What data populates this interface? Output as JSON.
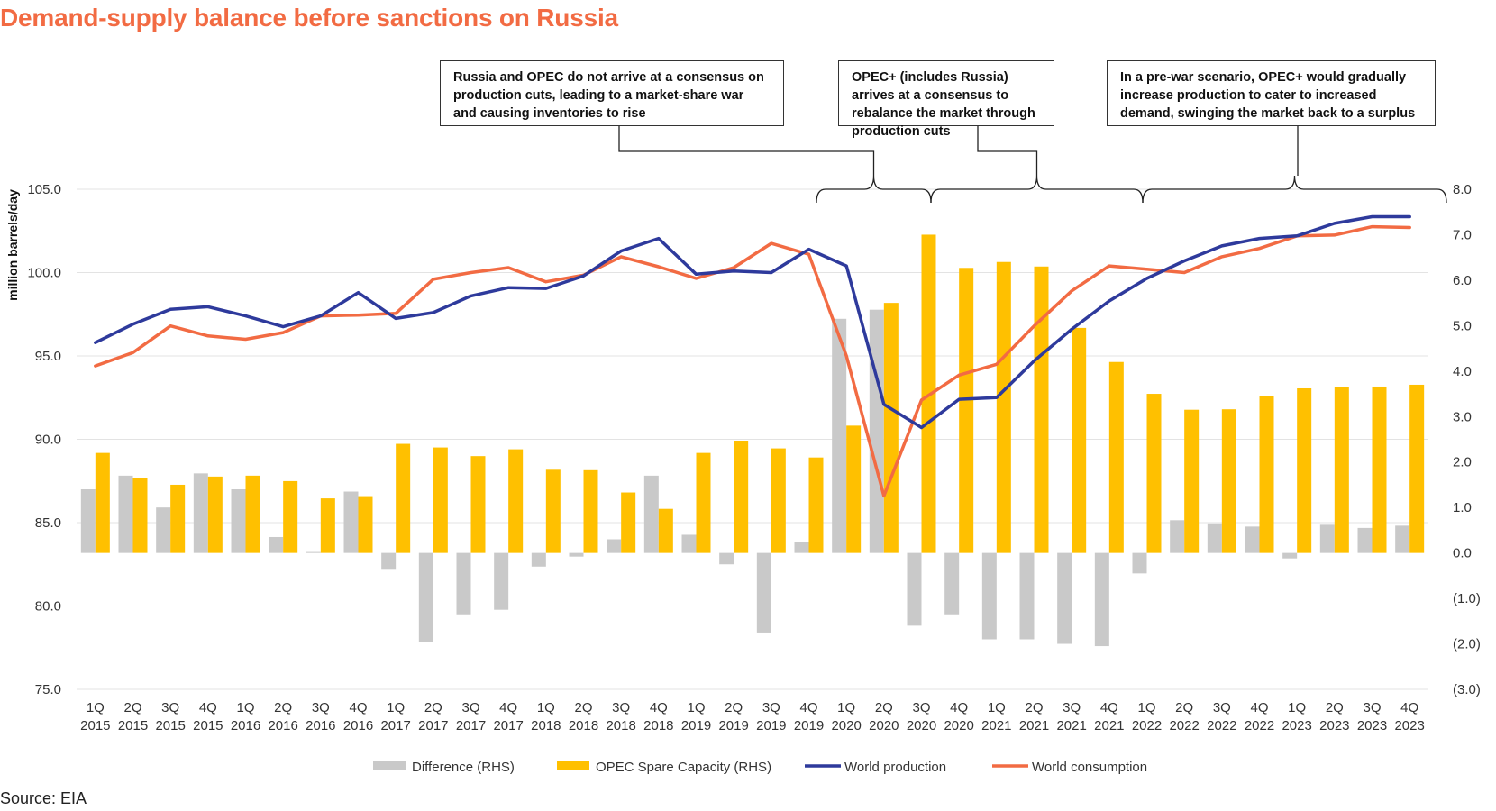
{
  "title": "Demand-supply balance before sanctions on Russia",
  "source": "Source: EIA",
  "annotations": [
    "Russia and OPEC do not arrive at a consensus on production cuts, leading to a market-share war and causing inventories to rise",
    "OPEC+ (includes Russia) arrives at a consensus to rebalance the market through production cuts",
    "In a pre-war scenario, OPEC+ would gradually increase production to cater to increased demand, swinging the market back to a surplus"
  ],
  "colors": {
    "difference": "#C9C9C9",
    "spare_capacity": "#FFC000",
    "production": "#2E3A9C",
    "consumption": "#F26B43",
    "title": "#F26B43",
    "grid": "#E3E3E3"
  },
  "chart_data": {
    "type": "bar",
    "title": "Demand-supply balance before sanctions on Russia",
    "ylabel": "million barrels/day",
    "ylim": [
      75,
      105
    ],
    "yticks": [
      "75.0",
      "80.0",
      "85.0",
      "90.0",
      "95.0",
      "100.0",
      "105.0"
    ],
    "y2lim": [
      -3,
      8
    ],
    "y2ticks": [
      "(3.0)",
      "(2.0)",
      "(1.0)",
      "0.0",
      "1.0",
      "2.0",
      "3.0",
      "4.0",
      "5.0",
      "6.0",
      "7.0",
      "8.0"
    ],
    "grid": true,
    "legend_position": "bottom",
    "categories": [
      "1Q 2015",
      "2Q 2015",
      "3Q 2015",
      "4Q 2015",
      "1Q 2016",
      "2Q 2016",
      "3Q 2016",
      "4Q 2016",
      "1Q 2017",
      "2Q 2017",
      "3Q 2017",
      "4Q 2017",
      "1Q 2018",
      "2Q 2018",
      "3Q 2018",
      "4Q 2018",
      "1Q 2019",
      "2Q 2019",
      "3Q 2019",
      "4Q 2019",
      "1Q 2020",
      "2Q 2020",
      "3Q 2020",
      "4Q 2020",
      "1Q 2021",
      "2Q 2021",
      "3Q 2021",
      "4Q 2021",
      "1Q 2022",
      "2Q 2022",
      "3Q 2022",
      "4Q 2022",
      "1Q 2023",
      "2Q 2023",
      "3Q 2023",
      "4Q 2023"
    ],
    "series": [
      {
        "name": "Difference (RHS)",
        "type": "bar",
        "axis": "right",
        "values": [
          1.4,
          1.7,
          1.0,
          1.75,
          1.4,
          0.35,
          0.02,
          1.35,
          -0.35,
          -1.95,
          -1.35,
          -1.25,
          -0.3,
          -0.08,
          0.3,
          1.7,
          0.4,
          -0.25,
          -1.75,
          0.25,
          5.15,
          5.35,
          -1.6,
          -1.35,
          -1.9,
          -1.9,
          -2.0,
          -2.05,
          -0.45,
          0.72,
          0.65,
          0.58,
          -0.12,
          0.62,
          0.55,
          0.6
        ]
      },
      {
        "name": "OPEC Spare Capacity (RHS)",
        "type": "bar",
        "axis": "right",
        "values": [
          2.2,
          1.65,
          1.5,
          1.68,
          1.7,
          1.58,
          1.2,
          1.25,
          2.4,
          2.32,
          2.13,
          2.28,
          1.83,
          1.82,
          1.33,
          0.97,
          2.2,
          2.47,
          2.3,
          2.1,
          2.8,
          5.5,
          7.0,
          6.27,
          6.4,
          6.3,
          4.95,
          4.2,
          3.5,
          3.15,
          3.16,
          3.45,
          3.62,
          3.64,
          3.66,
          3.7
        ]
      },
      {
        "name": "World production",
        "type": "line",
        "axis": "left",
        "values": [
          95.8,
          96.9,
          97.8,
          97.95,
          97.4,
          96.75,
          97.4,
          98.8,
          97.25,
          97.6,
          98.6,
          99.1,
          99.05,
          99.8,
          101.3,
          102.05,
          99.9,
          100.1,
          100.0,
          101.4,
          100.4,
          92.1,
          90.7,
          92.4,
          92.5,
          94.7,
          96.6,
          98.3,
          99.65,
          100.7,
          101.6,
          102.05,
          102.2,
          102.95,
          103.35,
          103.35
        ]
      },
      {
        "name": "World consumption",
        "type": "line",
        "axis": "left",
        "values": [
          94.4,
          95.2,
          96.8,
          96.2,
          96.0,
          96.4,
          97.4,
          97.45,
          97.55,
          99.6,
          100.0,
          100.3,
          99.45,
          99.85,
          100.95,
          100.35,
          99.65,
          100.3,
          101.75,
          101.1,
          95.0,
          86.6,
          92.35,
          93.85,
          94.5,
          96.8,
          98.9,
          100.4,
          100.2,
          100.0,
          100.95,
          101.45,
          102.2,
          102.25,
          102.75,
          102.7
        ]
      }
    ]
  }
}
